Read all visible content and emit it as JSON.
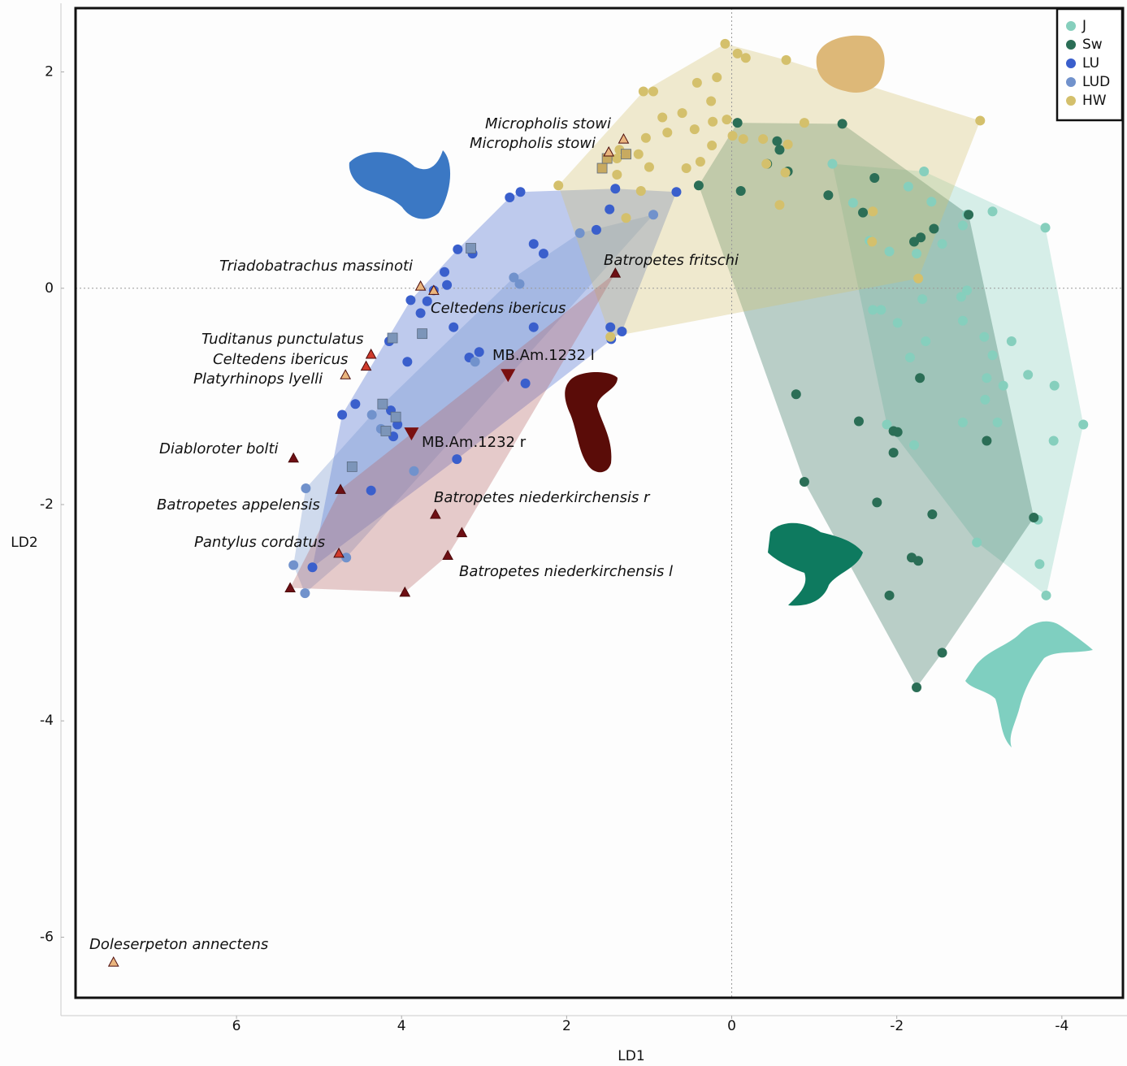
{
  "chart_data": {
    "type": "scatter",
    "xlabel": "LD1",
    "ylabel": "LD2",
    "xlim": [
      7.95,
      -4.74
    ],
    "ylim": [
      -6.56,
      2.59
    ],
    "xticks": [
      6,
      4,
      2,
      0,
      -2,
      -4
    ],
    "yticks": [
      2,
      0,
      -2,
      -4,
      -6
    ],
    "zero_lines": true,
    "legend": "upper right",
    "series": [
      {
        "name": "J",
        "color": "#86cfbd",
        "marker": "circle",
        "hull": true,
        "x": [
          -1.22,
          -2.33,
          -2.14,
          -2.42,
          -3.16,
          -3.8,
          -2.85,
          -2.8,
          -2.55,
          -2.24,
          -1.91,
          -1.67,
          -1.47,
          -2.85,
          -1.71,
          -1.81,
          -2.01,
          -2.31,
          -2.78,
          -2.16,
          -2.35,
          -2.8,
          -3.06,
          -3.16,
          -3.39,
          -3.09,
          -3.29,
          -3.59,
          -3.91,
          -3.07,
          -2.8,
          -3.22,
          -1.88,
          -2.21,
          -3.9,
          -4.26,
          -2.97,
          -3.73,
          -3.81,
          -3.71
        ],
        "y": [
          1.15,
          1.08,
          0.94,
          0.8,
          0.71,
          0.56,
          0.68,
          0.58,
          0.41,
          0.32,
          0.34,
          0.44,
          0.79,
          -0.02,
          -0.2,
          -0.2,
          -0.32,
          -0.1,
          -0.08,
          -0.64,
          -0.49,
          -0.3,
          -0.45,
          -0.62,
          -0.49,
          -0.83,
          -0.9,
          -0.8,
          -0.9,
          -1.03,
          -1.24,
          -1.24,
          -1.26,
          -1.45,
          -1.41,
          -1.26,
          -2.35,
          -2.55,
          -2.84,
          -2.14
        ]
      },
      {
        "name": "Sw",
        "color": "#2b6e56",
        "marker": "circle",
        "hull": true,
        "x": [
          -0.07,
          -1.34,
          -0.55,
          -0.58,
          -0.43,
          -0.68,
          0.4,
          -0.11,
          -1.17,
          -1.73,
          -1.59,
          -2.87,
          -2.45,
          -2.29,
          -2.21,
          -2.28,
          -0.78,
          -1.54,
          -1.96,
          -2.01,
          -1.96,
          -3.09,
          -0.88,
          -1.76,
          -2.43,
          -3.66,
          -2.18,
          -2.26,
          -1.91,
          -2.55,
          -2.24
        ],
        "y": [
          1.53,
          1.52,
          1.36,
          1.28,
          1.15,
          1.08,
          0.95,
          0.9,
          0.86,
          1.02,
          0.7,
          0.68,
          0.55,
          0.47,
          0.43,
          -0.83,
          -0.98,
          -1.23,
          -1.32,
          -1.33,
          -1.52,
          -1.41,
          -1.79,
          -1.98,
          -2.09,
          -2.12,
          -2.49,
          -2.52,
          -2.84,
          -3.37,
          -3.69
        ]
      },
      {
        "name": "LU",
        "color": "#3a5fcc",
        "marker": "circle",
        "hull": true,
        "x": [
          2.69,
          2.56,
          1.41,
          0.67,
          1.48,
          1.64,
          2.4,
          2.28,
          3.32,
          3.14,
          3.48,
          3.61,
          3.45,
          3.89,
          3.77,
          3.69,
          3.37,
          2.4,
          1.47,
          1.33,
          1.46,
          4.15,
          3.06,
          3.18,
          3.93,
          2.5,
          4.56,
          4.72,
          4.13,
          4.05,
          4.1,
          3.33,
          4.37,
          5.08
        ],
        "y": [
          0.84,
          0.89,
          0.92,
          0.89,
          0.73,
          0.54,
          0.41,
          0.32,
          0.36,
          0.32,
          0.15,
          -0.02,
          0.03,
          -0.11,
          -0.23,
          -0.12,
          -0.36,
          -0.36,
          -0.36,
          -0.4,
          -0.47,
          -0.49,
          -0.59,
          -0.64,
          -0.68,
          -0.88,
          -1.07,
          -1.17,
          -1.13,
          -1.26,
          -1.37,
          -1.58,
          -1.87,
          -2.58
        ]
      },
      {
        "name": "LUD",
        "color": "#7192cc",
        "marker": "circle",
        "hull": true,
        "x": [
          1.84,
          2.64,
          2.57,
          3.11,
          4.36,
          4.25,
          3.85,
          5.16,
          5.31,
          5.17,
          4.67,
          0.95
        ],
        "y": [
          0.51,
          0.1,
          0.04,
          -0.68,
          -1.17,
          -1.3,
          -1.69,
          -1.85,
          -2.56,
          -2.82,
          -2.49,
          0.68
        ]
      },
      {
        "name": "HW",
        "color": "#d4c06c",
        "marker": "circle",
        "hull": true,
        "x": [
          0.08,
          -0.07,
          -0.17,
          -0.66,
          0.18,
          0.42,
          0.95,
          1.07,
          0.25,
          0.6,
          0.84,
          0.23,
          0.06,
          0.78,
          0.45,
          -0.88,
          -0.01,
          1.04,
          -0.14,
          -0.38,
          -0.68,
          1.36,
          1.13,
          1.39,
          0.24,
          0.38,
          0.55,
          1.0,
          -0.42,
          -0.65,
          2.1,
          1.39,
          1.1,
          -0.58,
          1.28,
          -3.01,
          -1.71,
          -1.7,
          -2.26,
          1.47
        ],
        "y": [
          2.26,
          2.17,
          2.13,
          2.11,
          1.95,
          1.9,
          1.82,
          1.82,
          1.73,
          1.62,
          1.58,
          1.54,
          1.56,
          1.44,
          1.47,
          1.53,
          1.41,
          1.39,
          1.38,
          1.38,
          1.33,
          1.28,
          1.24,
          1.2,
          1.32,
          1.17,
          1.11,
          1.12,
          1.15,
          1.07,
          0.95,
          1.05,
          0.9,
          0.77,
          0.65,
          1.55,
          0.71,
          0.43,
          0.09,
          -0.45
        ]
      },
      {
        "color": "#7c95b9",
        "marker": "square",
        "hull": false,
        "x": [
          3.16,
          3.75,
          4.11,
          4.23,
          4.07,
          4.19,
          4.6
        ],
        "y": [
          0.37,
          -0.42,
          -0.46,
          -1.07,
          -1.19,
          -1.32,
          -1.65
        ]
      },
      {
        "color": "#c8aa60",
        "marker": "square",
        "hull": false,
        "x": [
          1.57,
          1.28,
          1.51
        ],
        "y": [
          1.11,
          1.24,
          1.2
        ]
      },
      {
        "color": "#6e0f14",
        "marker": "triangle",
        "hull": true,
        "hull_color": "#b46060",
        "x": [
          1.41,
          3.59,
          3.27,
          3.44,
          5.35,
          3.96,
          4.74
        ],
        "y": [
          0.14,
          -2.09,
          -2.26,
          -2.47,
          -2.77,
          -2.81,
          -1.86
        ]
      },
      {
        "color": "#6e0f14",
        "marker": "triangle",
        "hull": false,
        "x": [
          5.31
        ],
        "y": [
          -1.57
        ]
      },
      {
        "color": "#7a1010",
        "marker": "triangle-down",
        "hull": false,
        "x": [
          2.71,
          3.88
        ],
        "y": [
          -0.8,
          -1.34
        ]
      },
      {
        "color": "#cf3b2c",
        "marker": "triangle",
        "hull": false,
        "x": [
          4.37,
          4.43,
          4.76
        ],
        "y": [
          -0.61,
          -0.72,
          -2.45
        ]
      },
      {
        "color": "#eab57e",
        "marker": "triangle",
        "hull": false,
        "x": [
          1.31,
          1.49,
          3.77,
          3.61,
          4.68,
          7.49
        ],
        "y": [
          1.38,
          1.26,
          0.02,
          -0.02,
          -0.8,
          -6.23
        ]
      }
    ],
    "annotations": [
      "Micropholis stowi",
      "Micropholis stowi",
      "Triadobatrachus massinoti",
      "Batropetes fritschi",
      "Celtedens ibericus",
      "Tuditanus punctulatus",
      "Celtedens ibericus",
      "Platyrhinops lyelli",
      "MB.Am.1232 l",
      "Diabloroter bolti",
      "MB.Am.1232 r",
      "Batropetes niederkirchensis r",
      "Batropetes appelensis",
      "Pantylus cordatus",
      "Batropetes niederkirchensis l",
      "Doleserpeton annectens"
    ]
  }
}
